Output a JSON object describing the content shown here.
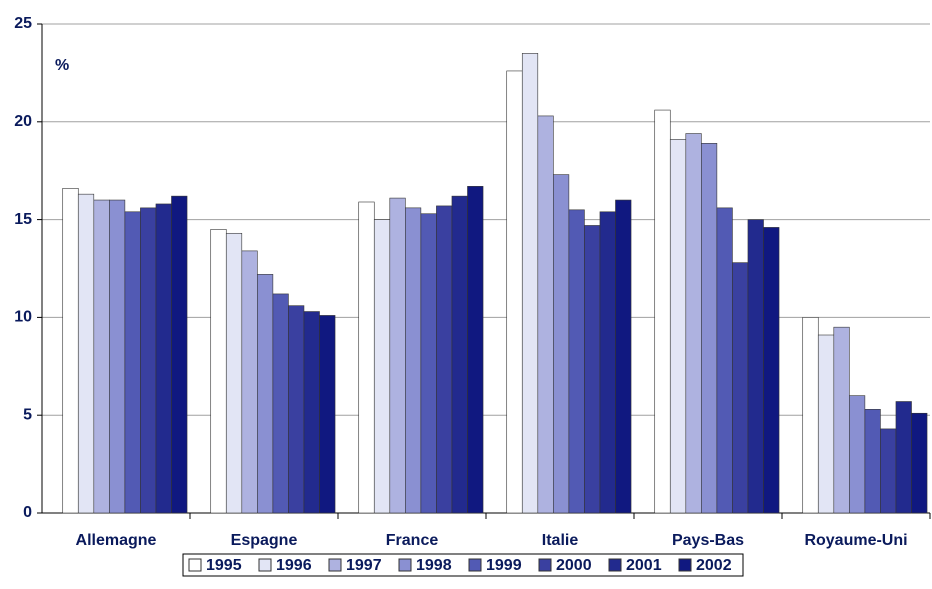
{
  "chart_data": {
    "type": "bar",
    "y_unit_label": "%",
    "categories": [
      "Allemagne",
      "Espagne",
      "France",
      "Italie",
      "Pays-Bas",
      "Royaume-Uni"
    ],
    "series": [
      {
        "name": "1995",
        "color": "#ffffff",
        "values": [
          16.6,
          14.5,
          15.9,
          22.6,
          20.6,
          10.0
        ]
      },
      {
        "name": "1996",
        "color": "#e2e5f5",
        "values": [
          16.3,
          14.3,
          15.0,
          23.5,
          19.1,
          9.1
        ]
      },
      {
        "name": "1997",
        "color": "#aeb2e0",
        "values": [
          16.0,
          13.4,
          16.1,
          20.3,
          19.4,
          9.5
        ]
      },
      {
        "name": "1998",
        "color": "#8a90d2",
        "values": [
          16.0,
          12.2,
          15.6,
          17.3,
          18.9,
          6.0
        ]
      },
      {
        "name": "1999",
        "color": "#525ab4",
        "values": [
          15.4,
          11.2,
          15.3,
          15.5,
          15.6,
          5.3
        ]
      },
      {
        "name": "2000",
        "color": "#3a40a0",
        "values": [
          15.6,
          10.6,
          15.7,
          14.7,
          12.8,
          4.3
        ]
      },
      {
        "name": "2001",
        "color": "#222a8e",
        "values": [
          15.8,
          10.3,
          16.2,
          15.4,
          15.0,
          5.7
        ]
      },
      {
        "name": "2002",
        "color": "#101880",
        "values": [
          16.2,
          10.1,
          16.7,
          16.0,
          14.6,
          5.1
        ]
      }
    ],
    "ylim": [
      0,
      25
    ],
    "yticks": [
      0,
      5,
      10,
      15,
      20,
      25
    ],
    "grid": true,
    "legend": "bottom"
  }
}
